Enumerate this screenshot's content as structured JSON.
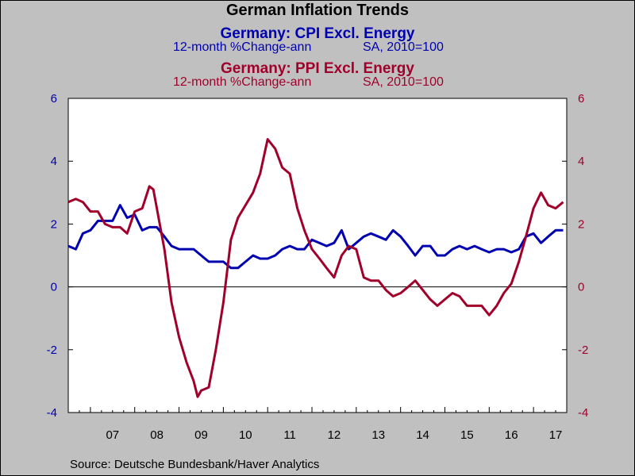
{
  "chart_data": {
    "type": "line",
    "title": "German Inflation Trends",
    "xlabel": "",
    "ylabel": "",
    "x_ticks": [
      "07",
      "08",
      "09",
      "10",
      "11",
      "12",
      "13",
      "14",
      "15",
      "16",
      "17"
    ],
    "y_ticks_left": [
      "6",
      "4",
      "2",
      "0",
      "-2",
      "-4"
    ],
    "y_ticks_right": [
      "6",
      "4",
      "2",
      "0",
      "-2",
      "-4"
    ],
    "ylim": [
      -4,
      6
    ],
    "xlim": [
      2006.5,
      2017.75
    ],
    "grid": false,
    "zero_line": true,
    "series": [
      {
        "name": "Germany: CPI Excl. Energy",
        "subtitle_left": "12-month %Change-ann",
        "subtitle_right": "SA, 2010=100",
        "color": "#0000b0",
        "axis": "left",
        "x": [
          2006.5,
          2006.67,
          2006.83,
          2007.0,
          2007.17,
          2007.33,
          2007.5,
          2007.67,
          2007.83,
          2008.0,
          2008.17,
          2008.33,
          2008.5,
          2008.67,
          2008.83,
          2009.0,
          2009.17,
          2009.33,
          2009.5,
          2009.67,
          2009.83,
          2010.0,
          2010.17,
          2010.33,
          2010.5,
          2010.67,
          2010.83,
          2011.0,
          2011.17,
          2011.33,
          2011.5,
          2011.67,
          2011.83,
          2012.0,
          2012.17,
          2012.33,
          2012.5,
          2012.67,
          2012.83,
          2013.0,
          2013.17,
          2013.33,
          2013.5,
          2013.67,
          2013.83,
          2014.0,
          2014.17,
          2014.33,
          2014.5,
          2014.67,
          2014.83,
          2015.0,
          2015.17,
          2015.33,
          2015.5,
          2015.67,
          2015.83,
          2016.0,
          2016.17,
          2016.33,
          2016.5,
          2016.67,
          2016.83,
          2017.0,
          2017.17,
          2017.33,
          2017.5,
          2017.67
        ],
        "y": [
          1.3,
          1.2,
          1.7,
          1.8,
          2.1,
          2.1,
          2.1,
          2.6,
          2.2,
          2.3,
          1.8,
          1.9,
          1.9,
          1.6,
          1.3,
          1.2,
          1.2,
          1.2,
          1.0,
          0.8,
          0.8,
          0.8,
          0.6,
          0.6,
          0.8,
          1.0,
          0.9,
          0.9,
          1.0,
          1.2,
          1.3,
          1.2,
          1.2,
          1.5,
          1.4,
          1.3,
          1.4,
          1.8,
          1.2,
          1.4,
          1.6,
          1.7,
          1.6,
          1.5,
          1.8,
          1.6,
          1.3,
          1.0,
          1.3,
          1.3,
          1.0,
          1.0,
          1.2,
          1.3,
          1.2,
          1.3,
          1.2,
          1.1,
          1.2,
          1.2,
          1.1,
          1.2,
          1.6,
          1.7,
          1.4,
          1.6,
          1.8,
          1.8
        ]
      },
      {
        "name": "Germany: PPI Excl. Energy",
        "subtitle_left": "12-month %Change-ann",
        "subtitle_right": "SA, 2010=100",
        "color": "#a0002a",
        "axis": "right",
        "x": [
          2006.5,
          2006.67,
          2006.83,
          2007.0,
          2007.17,
          2007.33,
          2007.5,
          2007.67,
          2007.83,
          2008.0,
          2008.17,
          2008.33,
          2008.42,
          2008.5,
          2008.67,
          2008.83,
          2009.0,
          2009.17,
          2009.33,
          2009.42,
          2009.5,
          2009.67,
          2009.83,
          2010.0,
          2010.17,
          2010.33,
          2010.5,
          2010.67,
          2010.75,
          2010.83,
          2011.0,
          2011.17,
          2011.33,
          2011.5,
          2011.67,
          2011.83,
          2012.0,
          2012.17,
          2012.33,
          2012.5,
          2012.67,
          2012.83,
          2013.0,
          2013.17,
          2013.33,
          2013.5,
          2013.67,
          2013.83,
          2014.0,
          2014.17,
          2014.33,
          2014.5,
          2014.67,
          2014.83,
          2015.0,
          2015.17,
          2015.33,
          2015.5,
          2015.67,
          2015.83,
          2016.0,
          2016.17,
          2016.33,
          2016.5,
          2016.67,
          2016.83,
          2017.0,
          2017.17,
          2017.33,
          2017.5,
          2017.67
        ],
        "y": [
          2.7,
          2.8,
          2.7,
          2.4,
          2.4,
          2.0,
          1.9,
          1.9,
          1.7,
          2.4,
          2.5,
          3.2,
          3.1,
          2.5,
          1.2,
          -0.5,
          -1.6,
          -2.4,
          -3.0,
          -3.5,
          -3.3,
          -3.2,
          -2.0,
          -0.5,
          1.5,
          2.2,
          2.6,
          3.0,
          3.3,
          3.6,
          4.7,
          4.4,
          3.8,
          3.6,
          2.5,
          1.8,
          1.2,
          0.9,
          0.6,
          0.3,
          1.0,
          1.3,
          1.2,
          0.3,
          0.2,
          0.2,
          -0.1,
          -0.3,
          -0.2,
          0.0,
          0.2,
          -0.1,
          -0.4,
          -0.6,
          -0.4,
          -0.2,
          -0.3,
          -0.6,
          -0.6,
          -0.6,
          -0.9,
          -0.6,
          -0.2,
          0.1,
          0.8,
          1.6,
          2.5,
          3.0,
          2.6,
          2.5,
          2.7
        ]
      }
    ]
  },
  "source": "Source:  Deutsche Bundesbank/Haver Analytics"
}
